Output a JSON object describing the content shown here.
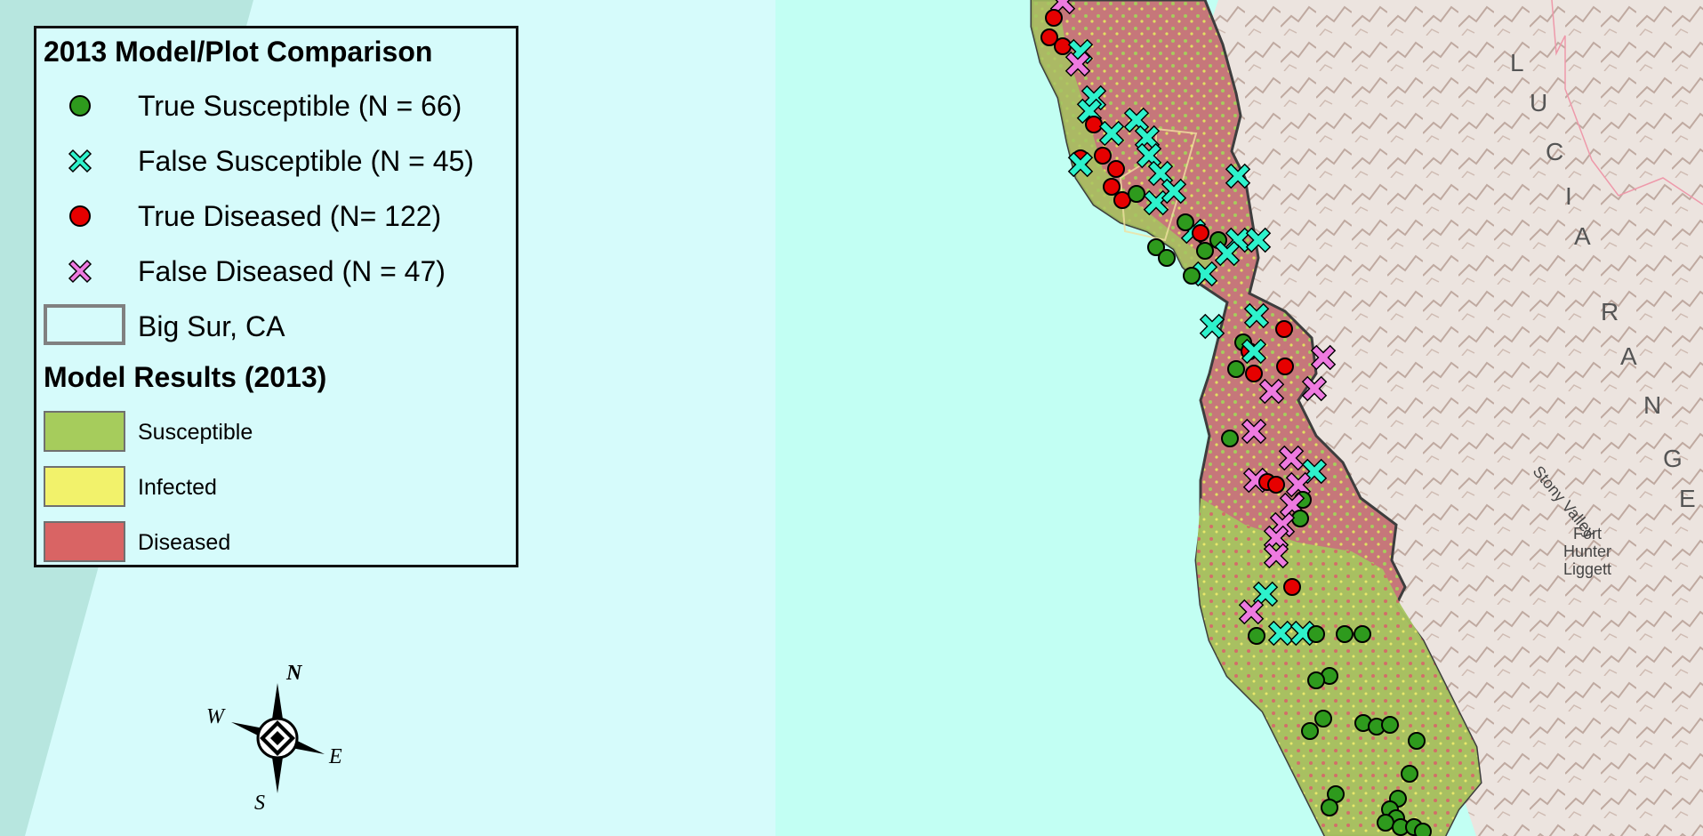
{
  "legend": {
    "title": "2013 Model/Plot Comparison",
    "items": [
      {
        "label": "True Susceptible (N = 66)",
        "symbol": "circle",
        "color": "#2e9a1d"
      },
      {
        "label": "False Susceptible (N = 45)",
        "symbol": "cross",
        "color": "#2ef2cc"
      },
      {
        "label": "True Diseased (N= 122)",
        "symbol": "circle",
        "color": "#e60000"
      },
      {
        "label": "False Diseased (N = 47)",
        "symbol": "cross",
        "color": "#ee7ae0"
      }
    ],
    "boundary_label": "Big Sur, CA",
    "results_title": "Model Results (2013)",
    "results": [
      {
        "label": "Susceptible",
        "color": "#a6cc5c"
      },
      {
        "label": "Infected",
        "color": "#f2f26b"
      },
      {
        "label": "Diseased",
        "color": "#d96464"
      }
    ]
  },
  "compass": {
    "n": "N",
    "s": "S",
    "e": "E",
    "w": "W"
  },
  "map_labels": {
    "range_letters": [
      "L",
      "U",
      "C",
      "I",
      "A",
      "R",
      "A",
      "N",
      "G",
      "E"
    ],
    "stony_valley": "Stony Valley",
    "fort_hunter_liggett": "Fort Hunter Liggett"
  },
  "colors": {
    "ocean": "#c2fff3",
    "water_open": "#d6fbfb",
    "terrain": "#e8dcd6",
    "susceptible": "#a6cc5c",
    "diseased": "#d96464",
    "infected": "#f2f26b"
  }
}
